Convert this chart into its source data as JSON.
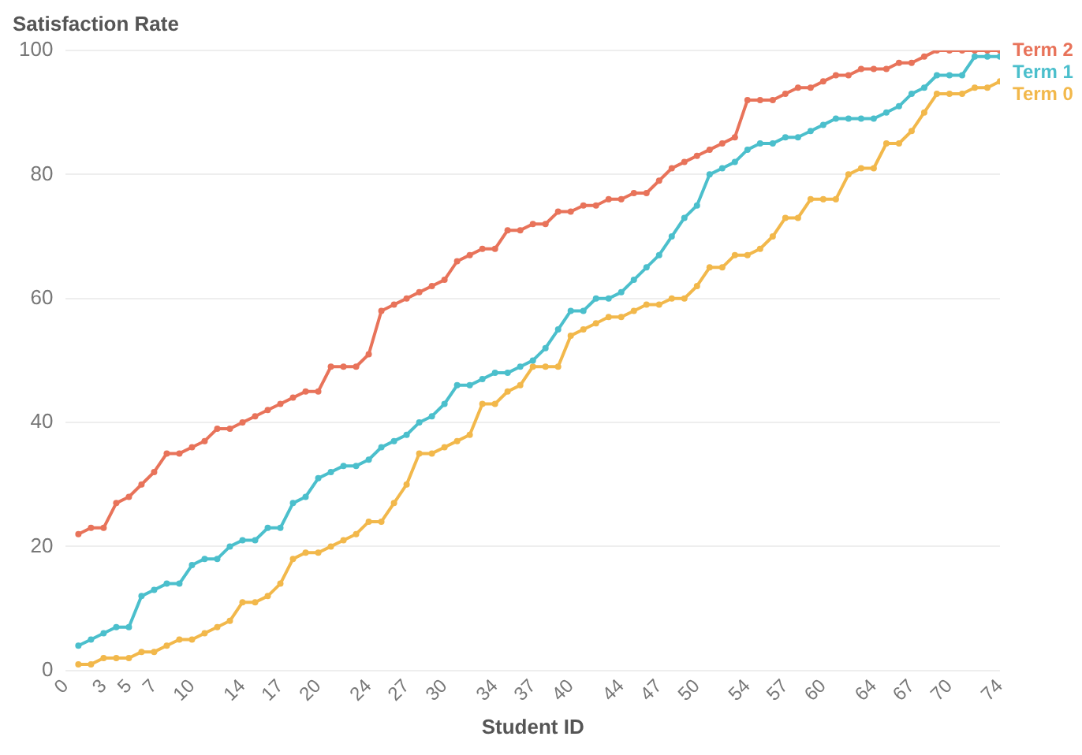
{
  "chart_data": {
    "type": "line",
    "ylabel": "Satisfaction Rate",
    "xlabel": "Student ID",
    "x": [
      1,
      2,
      3,
      4,
      5,
      6,
      7,
      8,
      9,
      10,
      11,
      12,
      13,
      14,
      15,
      16,
      17,
      18,
      19,
      20,
      21,
      22,
      23,
      24,
      25,
      26,
      27,
      28,
      29,
      30,
      31,
      32,
      33,
      34,
      35,
      36,
      37,
      38,
      39,
      40,
      41,
      42,
      43,
      44,
      45,
      46,
      47,
      48,
      49,
      50,
      51,
      52,
      53,
      54,
      55,
      56,
      57,
      58,
      59,
      60,
      61,
      62,
      63,
      64,
      65,
      66,
      67,
      68,
      69,
      70,
      71,
      72,
      73,
      74
    ],
    "series": [
      {
        "name": "Term 2",
        "color": "#e8735a",
        "values": [
          22,
          23,
          23,
          27,
          28,
          30,
          32,
          35,
          35,
          36,
          37,
          39,
          39,
          40,
          41,
          42,
          43,
          44,
          45,
          45,
          49,
          49,
          49,
          51,
          58,
          59,
          60,
          61,
          62,
          63,
          66,
          67,
          68,
          68,
          71,
          71,
          72,
          72,
          74,
          74,
          75,
          75,
          76,
          76,
          77,
          77,
          79,
          81,
          82,
          83,
          84,
          85,
          86,
          92,
          92,
          92,
          93,
          94,
          94,
          95,
          96,
          96,
          97,
          97,
          97,
          98,
          98,
          99,
          100,
          100,
          100,
          100,
          100,
          100
        ]
      },
      {
        "name": "Term 1",
        "color": "#4bbfcc",
        "values": [
          4,
          5,
          6,
          7,
          7,
          12,
          13,
          14,
          14,
          17,
          18,
          18,
          20,
          21,
          21,
          23,
          23,
          27,
          28,
          31,
          32,
          33,
          33,
          34,
          36,
          37,
          38,
          40,
          41,
          43,
          46,
          46,
          47,
          48,
          48,
          49,
          50,
          52,
          55,
          58,
          58,
          60,
          60,
          61,
          63,
          65,
          67,
          70,
          73,
          75,
          80,
          81,
          82,
          84,
          85,
          85,
          86,
          86,
          87,
          88,
          89,
          89,
          89,
          89,
          90,
          91,
          93,
          94,
          96,
          96,
          96,
          99,
          99,
          99
        ]
      },
      {
        "name": "Term 0",
        "color": "#f2b84b",
        "values": [
          1,
          1,
          2,
          2,
          2,
          3,
          3,
          4,
          5,
          5,
          6,
          7,
          8,
          11,
          11,
          12,
          14,
          18,
          19,
          19,
          20,
          21,
          22,
          24,
          24,
          27,
          30,
          35,
          35,
          36,
          37,
          38,
          43,
          43,
          45,
          46,
          49,
          49,
          49,
          54,
          55,
          56,
          57,
          57,
          58,
          59,
          59,
          60,
          60,
          62,
          65,
          65,
          67,
          67,
          68,
          70,
          73,
          73,
          76,
          76,
          76,
          80,
          81,
          81,
          85,
          85,
          87,
          90,
          93,
          93,
          93,
          94,
          94,
          95
        ]
      }
    ],
    "xlim": [
      0,
      74
    ],
    "xticks": [
      0,
      3,
      5,
      7,
      10,
      14,
      17,
      20,
      24,
      27,
      30,
      34,
      37,
      40,
      44,
      47,
      50,
      54,
      57,
      60,
      64,
      67,
      70,
      74
    ],
    "ylim": [
      0,
      100
    ],
    "yticks": [
      0,
      20,
      40,
      60,
      80,
      100
    ],
    "grid": "y",
    "marker": "circle",
    "line_style": "solid"
  }
}
